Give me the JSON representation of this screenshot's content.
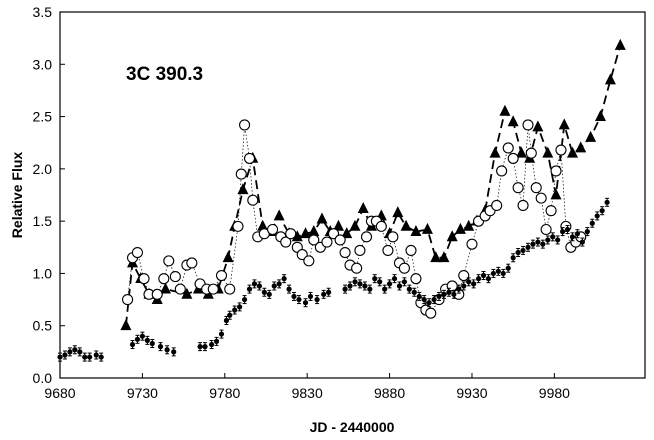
{
  "chart_data": {
    "type": "scatter",
    "title": "",
    "annotation": "3C 390.3",
    "xlabel": "JD - 2440000",
    "ylabel": "Relative Flux",
    "xlim": [
      9680,
      10035
    ],
    "ylim": [
      0.0,
      3.5
    ],
    "xticks": [
      "9680",
      "9730",
      "9780",
      "9830",
      "9880",
      "9930",
      "9980"
    ],
    "yticks": [
      "0.0",
      "0.5",
      "1.0",
      "1.5",
      "2.0",
      "2.5",
      "3.0",
      "3.5"
    ],
    "grid": false,
    "legend": "none",
    "series": [
      {
        "marker": "filled-triangle",
        "line": "dashed",
        "color": "#000000",
        "x": [
          9720,
          9724,
          9729,
          9734,
          9739,
          9744,
          9757,
          9764,
          9770,
          9776,
          9782,
          9786,
          9791,
          9797,
          9803,
          9808,
          9813,
          9819,
          9824,
          9829,
          9834,
          9839,
          9844,
          9849,
          9854,
          9859,
          9864,
          9869,
          9875,
          9880,
          9885,
          9890,
          9896,
          9903,
          9908,
          9913,
          9918,
          9923,
          9928,
          9933,
          9938,
          9944,
          9950,
          9955,
          9960,
          9965,
          9970,
          9976,
          9981,
          9986,
          9991,
          9996,
          10002,
          10008,
          10014,
          10020
        ],
        "y": [
          0.5,
          1.1,
          0.95,
          0.8,
          0.75,
          0.85,
          0.8,
          0.85,
          0.8,
          0.85,
          1.15,
          1.45,
          1.8,
          2.1,
          1.45,
          1.4,
          1.55,
          1.38,
          1.35,
          1.38,
          1.4,
          1.52,
          1.4,
          1.45,
          1.38,
          1.45,
          1.62,
          1.45,
          1.55,
          1.38,
          1.58,
          1.45,
          1.4,
          1.42,
          1.15,
          1.15,
          1.35,
          1.42,
          1.45,
          1.5,
          1.6,
          2.15,
          2.55,
          2.45,
          2.15,
          2.1,
          2.4,
          2.15,
          1.75,
          2.42,
          2.15,
          2.2,
          2.3,
          2.5,
          2.85,
          3.18
        ]
      },
      {
        "marker": "open-circle",
        "line": "dotted",
        "color": "#000000",
        "x": [
          9721,
          9724,
          9727,
          9731,
          9734,
          9739,
          9743,
          9746,
          9750,
          9753,
          9757,
          9760,
          9765,
          9769,
          9773,
          9778,
          9783,
          9788,
          9790,
          9792,
          9795,
          9797,
          9800,
          9804,
          9809,
          9814,
          9817,
          9820,
          9824,
          9827,
          9831,
          9834,
          9838,
          9842,
          9846,
          9850,
          9853,
          9856,
          9860,
          9862,
          9866,
          9869,
          9872,
          9875,
          9879,
          9882,
          9886,
          9889,
          9893,
          9896,
          9899,
          9902,
          9905,
          9910,
          9914,
          9918,
          9922,
          9925,
          9930,
          9934,
          9938,
          9941,
          9945,
          9948,
          9952,
          9955,
          9958,
          9961,
          9964,
          9966,
          9969,
          9972,
          9975,
          9978,
          9981,
          9984,
          9987,
          9990,
          9993,
          9996
        ],
        "y": [
          0.75,
          1.15,
          1.2,
          0.95,
          0.8,
          0.8,
          0.95,
          1.12,
          0.97,
          0.85,
          1.08,
          1.1,
          0.9,
          0.85,
          0.85,
          0.98,
          0.85,
          1.45,
          1.95,
          2.42,
          2.1,
          1.7,
          1.35,
          1.38,
          1.42,
          1.35,
          1.3,
          1.38,
          1.25,
          1.18,
          1.12,
          1.32,
          1.25,
          1.3,
          1.38,
          1.32,
          1.2,
          1.08,
          1.05,
          1.22,
          1.35,
          1.5,
          1.5,
          1.45,
          1.22,
          1.35,
          1.1,
          1.05,
          1.22,
          0.95,
          0.72,
          0.65,
          0.62,
          0.75,
          0.85,
          0.88,
          0.8,
          0.98,
          1.28,
          1.5,
          1.55,
          1.6,
          1.65,
          1.98,
          2.2,
          2.1,
          1.82,
          1.65,
          2.42,
          2.15,
          1.82,
          1.72,
          1.42,
          1.6,
          1.98,
          2.18,
          1.45,
          1.25,
          1.3,
          1.35
        ]
      },
      {
        "marker": "small-filled-circle-errorbar",
        "line": "none",
        "color": "#000000",
        "x": [
          9680,
          9683,
          9686,
          9689,
          9692,
          9695,
          9698,
          9702,
          9705,
          9724,
          9727,
          9730,
          9733,
          9736,
          9741,
          9745,
          9749,
          9765,
          9768,
          9772,
          9775,
          9778,
          9781,
          9783,
          9786,
          9789,
          9792,
          9795,
          9798,
          9801,
          9804,
          9807,
          9810,
          9813,
          9816,
          9819,
          9822,
          9825,
          9829,
          9832,
          9836,
          9840,
          9843,
          9853,
          9856,
          9859,
          9862,
          9865,
          9868,
          9871,
          9874,
          9877,
          9880,
          9883,
          9886,
          9889,
          9892,
          9895,
          9898,
          9901,
          9904,
          9907,
          9910,
          9913,
          9916,
          9919,
          9922,
          9925,
          9928,
          9931,
          9934,
          9937,
          9940,
          9943,
          9946,
          9949,
          9952,
          9955,
          9958,
          9961,
          9964,
          9967,
          9970,
          9973,
          9976,
          9979,
          9982,
          9985,
          9988,
          9991,
          9994,
          9997,
          10000,
          10003,
          10006,
          10009,
          10012
        ],
        "y": [
          0.2,
          0.22,
          0.25,
          0.27,
          0.25,
          0.2,
          0.2,
          0.22,
          0.2,
          0.32,
          0.37,
          0.4,
          0.36,
          0.33,
          0.3,
          0.27,
          0.25,
          0.3,
          0.3,
          0.32,
          0.35,
          0.42,
          0.55,
          0.6,
          0.65,
          0.68,
          0.75,
          0.85,
          0.9,
          0.88,
          0.82,
          0.8,
          0.88,
          0.9,
          0.95,
          0.85,
          0.78,
          0.75,
          0.72,
          0.78,
          0.75,
          0.8,
          0.82,
          0.85,
          0.88,
          0.92,
          0.9,
          0.88,
          0.85,
          0.95,
          0.92,
          0.85,
          0.9,
          0.95,
          0.88,
          0.92,
          0.85,
          0.82,
          0.78,
          0.75,
          0.72,
          0.75,
          0.78,
          0.8,
          0.82,
          0.8,
          0.85,
          0.88,
          0.92,
          0.9,
          0.95,
          0.98,
          0.95,
          1.0,
          1.02,
          1.0,
          1.05,
          1.15,
          1.2,
          1.22,
          1.25,
          1.28,
          1.3,
          1.28,
          1.32,
          1.35,
          1.32,
          1.4,
          1.42,
          1.35,
          1.38,
          1.3,
          1.4,
          1.48,
          1.55,
          1.6,
          1.68
        ]
      }
    ]
  }
}
